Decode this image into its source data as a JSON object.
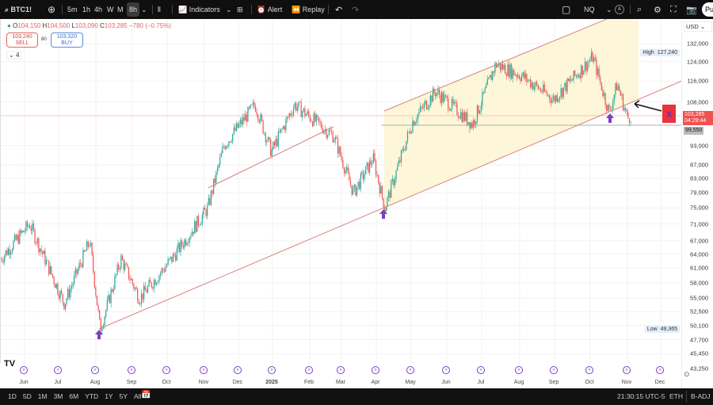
{
  "toolbar": {
    "symbol": "BTC1!",
    "intervals": [
      "5m",
      "1h",
      "4h",
      "W",
      "M",
      "8h"
    ],
    "active_interval": "8h",
    "indicators": "Indicators",
    "alert": "Alert",
    "replay": "Replay",
    "compare_symbol": "NQ",
    "auto": "A",
    "publish": "Pu"
  },
  "legend": {
    "open_label": "O",
    "open": "104,150",
    "high_label": "H",
    "high": "104,500",
    "low_label": "L",
    "low": "103,090",
    "close_label": "C",
    "close": "103,285",
    "change": "−780 (−0.75%)",
    "sell_price": "103,240",
    "sell_label": "SELL",
    "spread": "80",
    "buy_price": "103,320",
    "buy_label": "BUY",
    "collapsed_count": "4"
  },
  "colors": {
    "up": "#26a69a",
    "down": "#ef5350",
    "channel": "#d98080",
    "highlight": "#fdf6d8",
    "arrow": "#7b3fbf",
    "dark": "#0f0f0f"
  },
  "axis": {
    "currency": "USD",
    "ticks": [
      "132,000",
      "124,000",
      "116,000",
      "108,000",
      "93,000",
      "87,000",
      "83,000",
      "79,000",
      "75,000",
      "71,000",
      "67,000",
      "64,000",
      "61,000",
      "58,000",
      "55,000",
      "52,500",
      "50,100",
      "47,700",
      "45,450",
      "43,250"
    ],
    "high_label": "High",
    "high_value": "127,240",
    "low_label": "Low",
    "low_value": "49,365",
    "last_price": "103,285",
    "countdown": "04:29:44",
    "level": "99,550"
  },
  "time_axis": [
    "Jun",
    "Jul",
    "Aug",
    "Sep",
    "Oct",
    "Nov",
    "Dec",
    "2025",
    "Feb",
    "Mar",
    "Apr",
    "May",
    "Jun",
    "Jul",
    "Aug",
    "Sep",
    "Oct",
    "Nov",
    "Dec"
  ],
  "annotation": {
    "marker": "X"
  },
  "bottom": {
    "ranges": [
      "1D",
      "5D",
      "1M",
      "3M",
      "6M",
      "YTD",
      "1Y",
      "5Y",
      "All"
    ],
    "clock": "21:30:15 UTC-5",
    "session": "ETH",
    "adjust": "B-ADJ"
  },
  "chart_data": {
    "type": "candlestick",
    "scale": "log",
    "ylim": [
      43250,
      132000
    ],
    "price_path": [
      [
        "2024-05-11",
        63000
      ],
      [
        "2024-06-05",
        71000
      ],
      [
        "2024-07-05",
        54000
      ],
      [
        "2024-07-27",
        67000
      ],
      [
        "2024-08-05",
        49400
      ],
      [
        "2024-08-23",
        63000
      ],
      [
        "2024-09-08",
        55000
      ],
      [
        "2024-10-06",
        63000
      ],
      [
        "2024-11-06",
        75000
      ],
      [
        "2024-11-11",
        81000
      ],
      [
        "2024-11-20",
        93000
      ],
      [
        "2024-12-17",
        107000
      ],
      [
        "2024-12-31",
        91000
      ],
      [
        "2025-01-20",
        107000
      ],
      [
        "2025-02-23",
        96000
      ],
      [
        "2025-03-12",
        79000
      ],
      [
        "2025-03-29",
        89000
      ],
      [
        "2025-04-08",
        75000
      ],
      [
        "2025-05-02",
        101000
      ],
      [
        "2025-05-22",
        112000
      ],
      [
        "2025-06-23",
        100000
      ],
      [
        "2025-07-13",
        123000
      ],
      [
        "2025-08-05",
        118000
      ],
      [
        "2025-09-01",
        109000
      ],
      [
        "2025-10-05",
        126000
      ],
      [
        "2025-10-19",
        104000
      ],
      [
        "2025-10-26",
        115000
      ],
      [
        "2025-11-04",
        102000
      ],
      [
        "2025-11-07",
        103285
      ]
    ]
  }
}
